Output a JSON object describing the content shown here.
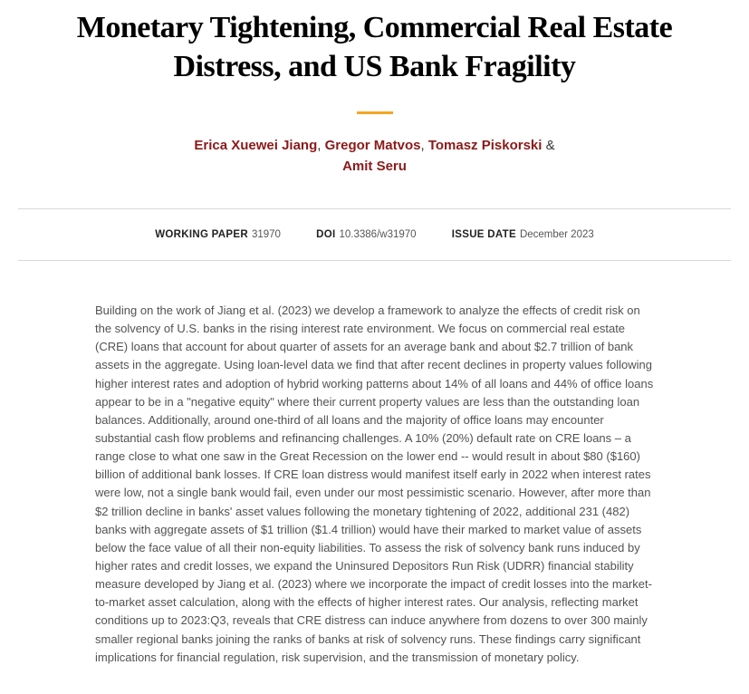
{
  "title": "Monetary Tightening, Commercial Real Estate Distress, and US Bank Fragility",
  "authors": {
    "a1": "Erica Xuewei Jiang",
    "a2": "Gregor Matvos",
    "a3": "Tomasz Piskorski",
    "a4": "Amit Seru",
    "sep": ", ",
    "amp": " & "
  },
  "meta": {
    "wp_label": "WORKING PAPER",
    "wp_value": "31970",
    "doi_label": "DOI",
    "doi_value": "10.3386/w31970",
    "date_label": "ISSUE DATE",
    "date_value": "December 2023"
  },
  "abstract": "Building on the work of Jiang et al. (2023) we develop a framework to analyze the effects of credit risk on the solvency of U.S. banks in the rising interest rate environment. We focus on commercial real estate (CRE) loans that account for about quarter of assets for an average bank and about $2.7 trillion of bank assets in the aggregate. Using loan-level data we find that after recent declines in property values following higher interest rates and adoption of hybrid working patterns about 14% of all loans and 44% of office loans appear to be in a \"negative equity\" where their current property values are less than the outstanding loan balances. Additionally, around one-third of all loans and the majority of office loans may encounter substantial cash flow problems and refinancing challenges. A 10% (20%) default rate on CRE loans – a range close to what one saw in the Great Recession on the lower end -- would result in about $80 ($160) billion of additional bank losses. If CRE loan distress would manifest itself early in 2022 when interest rates were low, not a single bank would fail, even under our most pessimistic scenario. However, after more than $2 trillion decline in banks' asset values following the monetary tightening of 2022, additional 231 (482) banks with aggregate assets of $1 trillion ($1.4 trillion) would have their marked to market value of assets below the face value of all their non-equity liabilities. To assess the risk of solvency bank runs induced by higher rates and credit losses, we expand the Uninsured Depositors Run Risk (UDRR) financial stability measure developed by Jiang et al. (2023) where we incorporate the impact of credit losses into the market-to-market asset calculation, along with the effects of higher interest rates. Our analysis, reflecting market conditions up to 2023:Q3, reveals that CRE distress can induce anywhere from dozens to over 300 mainly smaller regional banks joining the ranks of banks at risk of solvency runs. These findings carry significant implications for financial regulation, risk supervision, and the transmission of monetary policy.",
  "colors": {
    "author_link": "#8b1a1a",
    "divider": "#f5a623",
    "border": "#d8d8d8",
    "body_text": "#525252"
  }
}
